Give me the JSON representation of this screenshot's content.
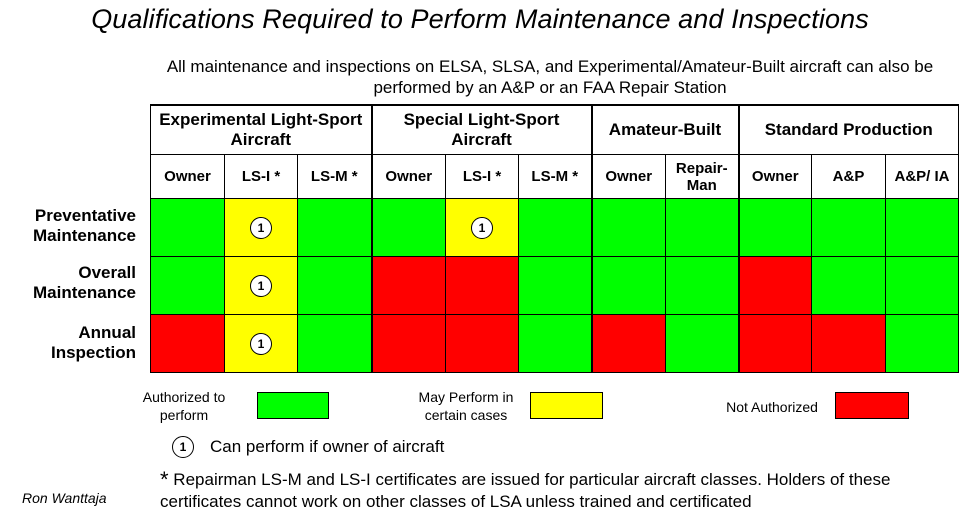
{
  "title": "Qualifications Required to Perform Maintenance and Inspections",
  "subtitle": "All maintenance and inspections on ELSA, SLSA, and Experimental/Amateur-Built aircraft can also be performed by an A&P or an FAA Repair Station",
  "groups": [
    {
      "label": "Experimental Light-Sport Aircraft",
      "cols": [
        "Owner",
        "LS-I *",
        "LS-M *"
      ]
    },
    {
      "label": "Special Light-Sport Aircraft",
      "cols": [
        "Owner",
        "LS-I *",
        "LS-M *"
      ]
    },
    {
      "label": "Amateur-Built",
      "cols": [
        "Owner",
        "Repair-Man"
      ]
    },
    {
      "label": "Standard Production",
      "cols": [
        "Owner",
        "A&P",
        "A&P/ IA"
      ]
    }
  ],
  "rows": [
    {
      "label": "Preventative Maintenance",
      "cells": [
        "green",
        "yellow",
        "green",
        "green",
        "yellow",
        "green",
        "green",
        "green",
        "green",
        "green",
        "green"
      ],
      "marks": [
        "",
        "1",
        "",
        "",
        "1",
        "",
        "",
        "",
        "",
        "",
        ""
      ]
    },
    {
      "label": "Overall Maintenance",
      "cells": [
        "green",
        "yellow",
        "green",
        "red",
        "red",
        "green",
        "green",
        "green",
        "red",
        "green",
        "green"
      ],
      "marks": [
        "",
        "1",
        "",
        "",
        "",
        "",
        "",
        "",
        "",
        "",
        ""
      ]
    },
    {
      "label": "Annual Inspection",
      "cells": [
        "red",
        "yellow",
        "green",
        "red",
        "red",
        "green",
        "red",
        "green",
        "red",
        "red",
        "green"
      ],
      "marks": [
        "",
        "1",
        "",
        "",
        "",
        "",
        "",
        "",
        "",
        "",
        ""
      ]
    }
  ],
  "legend": {
    "authorized": "Authorized to perform",
    "may_perform": "May Perform in certain cases",
    "not_authorized": "Not Authorized",
    "colors": {
      "green": "#00ff00",
      "yellow": "#ffff00",
      "red": "#ff0000"
    }
  },
  "note": {
    "symbol": "1",
    "text": "Can perform if owner of aircraft"
  },
  "footnote": {
    "symbol": "*",
    "text": "Repairman LS-M and LS-I certificates are issued for particular aircraft classes.  Holders of these certificates cannot work on other classes of LSA unless trained and certificated"
  },
  "author": "Ron Wanttaja"
}
